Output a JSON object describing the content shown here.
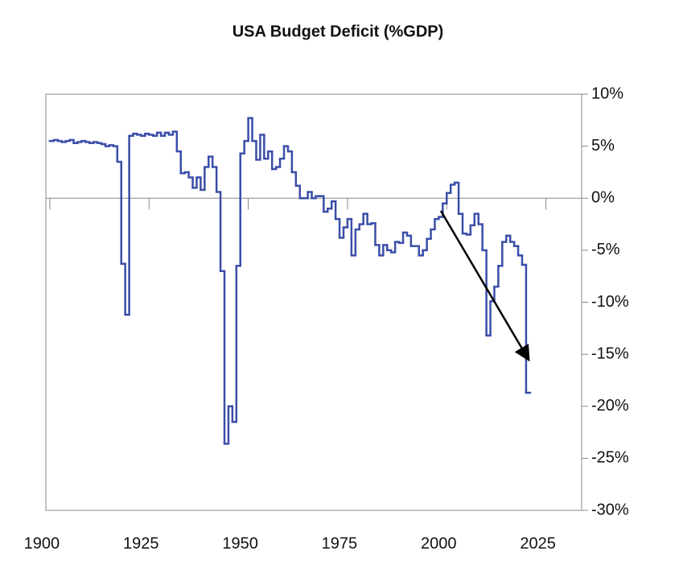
{
  "chart_data": {
    "type": "step-line",
    "title": "USA Budget Deficit (%GDP)",
    "x": [
      1900,
      1901,
      1902,
      1903,
      1904,
      1905,
      1906,
      1907,
      1908,
      1909,
      1910,
      1911,
      1912,
      1913,
      1914,
      1915,
      1916,
      1917,
      1918,
      1919,
      1920,
      1921,
      1922,
      1923,
      1924,
      1925,
      1926,
      1927,
      1928,
      1929,
      1930,
      1931,
      1932,
      1933,
      1934,
      1935,
      1936,
      1937,
      1938,
      1939,
      1940,
      1941,
      1942,
      1943,
      1944,
      1945,
      1946,
      1947,
      1948,
      1949,
      1950,
      1951,
      1952,
      1953,
      1954,
      1955,
      1956,
      1957,
      1958,
      1959,
      1960,
      1961,
      1962,
      1963,
      1964,
      1965,
      1966,
      1967,
      1968,
      1969,
      1970,
      1971,
      1972,
      1973,
      1974,
      1975,
      1976,
      1977,
      1978,
      1979,
      1980,
      1981,
      1982,
      1983,
      1984,
      1985,
      1986,
      1987,
      1988,
      1989,
      1990,
      1991,
      1992,
      1993,
      1994,
      1995,
      1996,
      1997,
      1998,
      1999,
      2000,
      2001,
      2002,
      2003,
      2004,
      2005,
      2006,
      2007,
      2008,
      2009,
      2010,
      2011,
      2012,
      2013,
      2014,
      2015,
      2016,
      2017,
      2018,
      2019,
      2020
    ],
    "series": [
      {
        "color": "#3a4ea8",
        "values": [
          5.5,
          5.6,
          5.5,
          5.4,
          5.5,
          5.6,
          5.3,
          5.4,
          5.5,
          5.4,
          5.3,
          5.4,
          5.3,
          5.2,
          5.0,
          5.1,
          5.0,
          3.5,
          -6.3,
          -11.2,
          6.0,
          6.2,
          6.1,
          6.0,
          6.2,
          6.1,
          6.0,
          6.3,
          6.0,
          6.3,
          6.1,
          6.4,
          4.5,
          2.4,
          2.5,
          2.0,
          1.0,
          2.0,
          0.8,
          3.0,
          4.0,
          3.0,
          0.6,
          -7.0,
          -23.6,
          -20.0,
          -21.5,
          -6.5,
          4.3,
          5.5,
          7.7,
          5.5,
          3.7,
          6.1,
          3.8,
          4.5,
          2.8,
          3.0,
          3.8,
          5.0,
          4.5,
          2.5,
          1.2,
          0.0,
          0.0,
          0.6,
          0.0,
          0.2,
          0.2,
          -1.3,
          -1.0,
          -0.3,
          -2.0,
          -3.8,
          -2.8,
          -2.0,
          -5.5,
          -3.0,
          -2.5,
          -1.5,
          -2.5,
          -2.4,
          -4.5,
          -5.5,
          -4.5,
          -5.0,
          -5.2,
          -4.2,
          -4.3,
          -3.3,
          -3.6,
          -4.6,
          -4.6,
          -5.5,
          -5.0,
          -3.9,
          -3.0,
          -2.0,
          -1.8,
          -0.5,
          0.5,
          1.3,
          1.5,
          -1.5,
          -3.4,
          -3.5,
          -2.6,
          -1.5,
          -2.5,
          -5.0,
          -13.2,
          -9.9,
          -8.5,
          -6.5,
          -4.2,
          -3.6,
          -4.2,
          -4.6,
          -5.5,
          -6.4,
          -18.7
        ]
      }
    ],
    "xlim": [
      1899,
      2034
    ],
    "xticks": [
      1900,
      1925,
      1950,
      1975,
      2000,
      2025
    ],
    "ylim": [
      -30,
      10
    ],
    "yticks": [
      {
        "value": 10,
        "label": "10%"
      },
      {
        "value": 5,
        "label": "5%"
      },
      {
        "value": 0,
        "label": "0%"
      },
      {
        "value": -5,
        "label": "-5%"
      },
      {
        "value": -10,
        "label": "-10%"
      },
      {
        "value": -15,
        "label": "-15%"
      },
      {
        "value": -20,
        "label": "-20%"
      },
      {
        "value": -25,
        "label": "-25%"
      },
      {
        "value": -30,
        "label": "-30%"
      }
    ]
  }
}
